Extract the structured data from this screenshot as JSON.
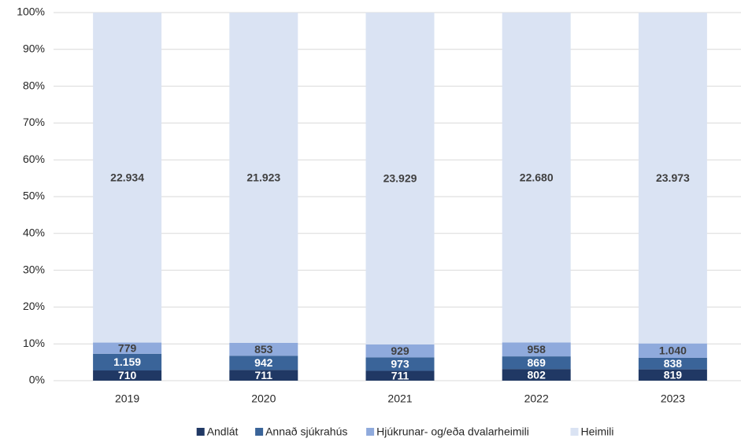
{
  "chart_data": {
    "type": "bar",
    "stack": "percent",
    "categories": [
      "2019",
      "2020",
      "2021",
      "2022",
      "2023"
    ],
    "series": [
      {
        "name": "Andlát",
        "color": "#203864",
        "label_color": "#ffffff",
        "values": [
          710,
          711,
          711,
          802,
          819
        ],
        "value_labels": [
          "710",
          "711",
          "711",
          "802",
          "819"
        ]
      },
      {
        "name": "Annað sjúkrahús",
        "color": "#3a6499",
        "label_color": "#ffffff",
        "values": [
          1159,
          942,
          973,
          869,
          838
        ],
        "value_labels": [
          "1.159",
          "942",
          "973",
          "869",
          "838"
        ]
      },
      {
        "name": "Hjúkrunar- og/eða dvalarheimili",
        "color": "#8faadc",
        "label_color": "#404040",
        "values": [
          779,
          853,
          929,
          958,
          1040
        ],
        "value_labels": [
          "779",
          "853",
          "929",
          "958",
          "1.040"
        ]
      },
      {
        "name": "Heimili",
        "color": "#dae3f3",
        "label_color": "#404040",
        "values": [
          22934,
          21923,
          23929,
          22680,
          23973
        ],
        "value_labels": [
          "22.934",
          "21.923",
          "23.929",
          "22.680",
          "23.973"
        ]
      }
    ],
    "ylim": [
      0,
      100
    ],
    "yticks": [
      {
        "value": 0,
        "label": "0%"
      },
      {
        "value": 10,
        "label": "10%"
      },
      {
        "value": 20,
        "label": "20%"
      },
      {
        "value": 30,
        "label": "30%"
      },
      {
        "value": 40,
        "label": "40%"
      },
      {
        "value": 50,
        "label": "50%"
      },
      {
        "value": 60,
        "label": "60%"
      },
      {
        "value": 70,
        "label": "70%"
      },
      {
        "value": 80,
        "label": "80%"
      },
      {
        "value": 90,
        "label": "90%"
      },
      {
        "value": 100,
        "label": "100%"
      }
    ],
    "grid": true,
    "legend": "bottom"
  }
}
